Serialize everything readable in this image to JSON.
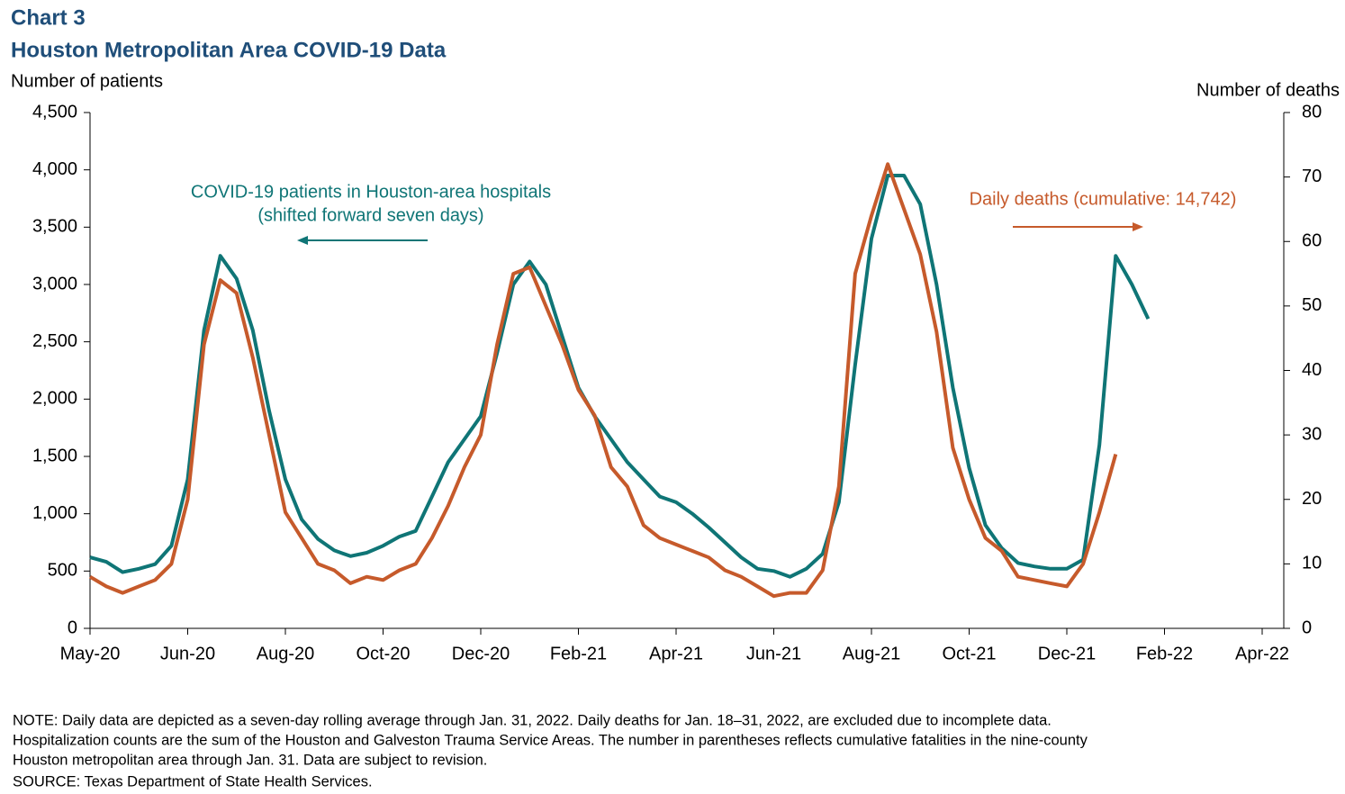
{
  "chart_data": {
    "type": "line",
    "supertitle": "Chart 3",
    "title": "Houston Metropolitan Area COVID-19 Data",
    "ylabel": "Number of patients",
    "y2label": "Number of deaths",
    "categories": [
      "May-20",
      null,
      null,
      null,
      null,
      null,
      "Jun-20",
      null,
      null,
      null,
      null,
      null,
      "Aug-20",
      null,
      null,
      null,
      null,
      null,
      "Oct-20",
      null,
      null,
      null,
      null,
      null,
      "Dec-20",
      null,
      null,
      null,
      null,
      null,
      "Feb-21",
      null,
      null,
      null,
      null,
      null,
      "Apr-21",
      null,
      null,
      null,
      null,
      null,
      "Jun-21",
      null,
      null,
      null,
      null,
      null,
      "Aug-21",
      null,
      null,
      null,
      null,
      null,
      "Oct-21",
      null,
      null,
      null,
      null,
      null,
      "Dec-21",
      null,
      null,
      null,
      null,
      null,
      "Feb-22",
      null,
      null,
      null,
      null,
      null,
      "Apr-22",
      null
    ],
    "ylim": [
      0,
      4500
    ],
    "yticks": [
      0,
      500,
      {
        "value": 1000,
        "label": "1,000"
      },
      {
        "value": 1500,
        "label": "1,500"
      },
      {
        "value": 2000,
        "label": "2,000"
      },
      {
        "value": 2500,
        "label": "2,500"
      },
      {
        "value": 3000,
        "label": "3,000"
      },
      {
        "value": 3500,
        "label": "3,500"
      },
      {
        "value": 4000,
        "label": "4,000"
      },
      {
        "value": 4500,
        "label": "4,500"
      }
    ],
    "y2lim": [
      0,
      80
    ],
    "y2ticks": [
      0,
      10,
      20,
      30,
      40,
      50,
      60,
      70,
      80
    ],
    "series": [
      {
        "name": "COVID-19 patients in Houston-area hospitals",
        "color": "#0f7576",
        "axis": "y",
        "values": [
          620,
          580,
          490,
          520,
          560,
          720,
          1300,
          2600,
          3250,
          3050,
          2600,
          1900,
          1300,
          950,
          780,
          680,
          630,
          660,
          720,
          800,
          850,
          1150,
          1450,
          1650,
          1850,
          2400,
          3000,
          3200,
          3000,
          2550,
          2100,
          1850,
          1650,
          1450,
          1300,
          1150,
          1100,
          1000,
          880,
          750,
          620,
          520,
          500,
          450,
          520,
          650,
          1100,
          2300,
          3400,
          3950,
          3950,
          3700,
          3000,
          2100,
          1400,
          900,
          700,
          570,
          540,
          520,
          520,
          600,
          1600,
          3250,
          3000,
          2700,
          null,
          null,
          null,
          null,
          null,
          null,
          null,
          null
        ]
      },
      {
        "name": "Daily deaths",
        "color": "#c65a2b",
        "axis": "y2",
        "values": [
          8,
          6.5,
          5.5,
          6.5,
          7.5,
          10,
          20,
          44,
          54,
          52,
          42,
          30,
          18,
          14,
          10,
          9,
          7,
          8,
          7.5,
          9,
          10,
          14,
          19,
          25,
          30,
          44,
          55,
          56,
          50,
          44,
          37,
          33,
          25,
          22,
          16,
          14,
          13,
          12,
          11,
          9,
          8,
          6.5,
          5,
          5.5,
          5.5,
          9,
          22,
          55,
          64,
          72,
          65,
          58,
          46,
          28,
          20,
          14,
          12,
          8,
          7.5,
          7,
          6.5,
          10,
          18,
          27,
          null,
          null,
          null,
          null,
          null,
          null,
          null,
          null,
          null,
          null
        ]
      }
    ],
    "annotations": [
      "COVID-19 patients in Houston-area hospitals",
      "(shifted forward seven days)",
      "Daily deaths (cumulative: 14,742)"
    ],
    "notes": [
      "NOTE: Daily data are depicted as a seven-day rolling average through Jan. 31, 2022. Daily deaths for Jan. 18–31, 2022, are excluded due to incomplete data.",
      "Hospitalization counts are the sum of the Houston and Galveston Trauma Service Areas. The number in parentheses reflects cumulative fatalities in the nine-county",
      "Houston metropolitan area through Jan. 31. Data are subject to revision.",
      "SOURCE: Texas Department of State Health Services."
    ]
  }
}
